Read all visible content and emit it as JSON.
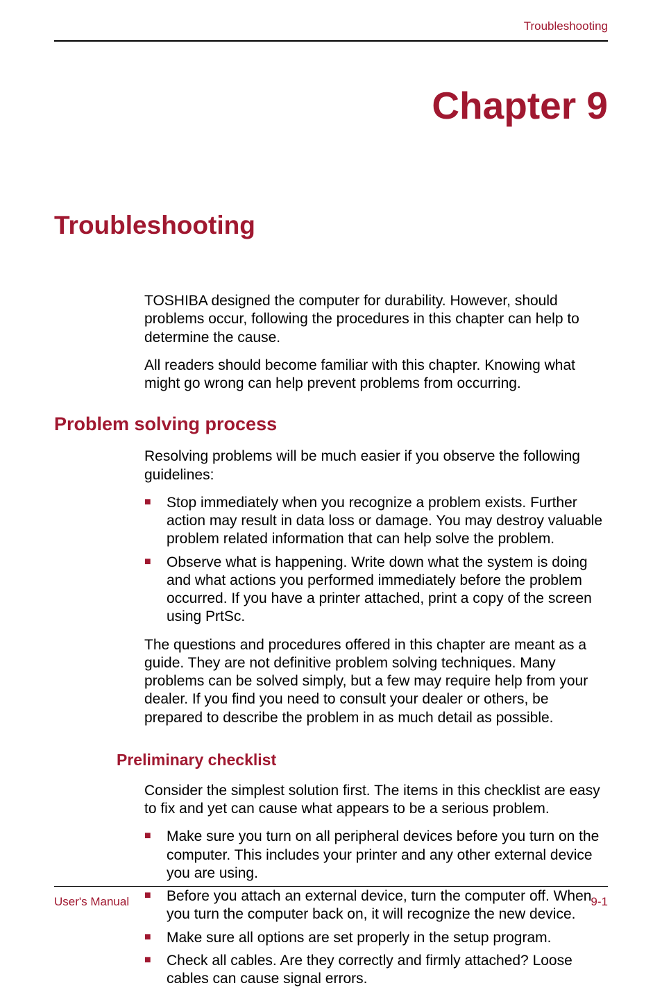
{
  "colors": {
    "accent": "#a01830",
    "text": "#000000",
    "background": "#ffffff",
    "rule": "#000000"
  },
  "typography": {
    "chapter_fontsize": 55,
    "section_fontsize": 37,
    "subsection_fontsize": 27,
    "sub2_fontsize": 23,
    "body_fontsize": 21,
    "header_footer_fontsize": 17
  },
  "header": {
    "right_text": "Troubleshooting"
  },
  "chapter": {
    "label": "Chapter 9"
  },
  "section": {
    "title": "Troubleshooting"
  },
  "intro": {
    "p1": "TOSHIBA designed the computer for durability. However, should problems occur, following the procedures in this chapter can help to determine the cause.",
    "p2": "All readers should become familiar with this chapter. Knowing what might go wrong can help prevent problems from occurring."
  },
  "subsection1": {
    "title": "Problem solving process",
    "p1": "Resolving problems will be much easier if you observe the following guidelines:",
    "bullets": [
      "Stop immediately when you recognize a problem exists. Further action may result in data loss or damage. You may destroy valuable problem related information that can help solve the problem.",
      "Observe what is happening. Write down what the system is doing and what actions you performed immediately before the problem occurred. If you have a printer attached, print a copy of the screen using PrtSc."
    ],
    "p2": "The questions and procedures offered in this chapter are meant as a guide. They are not definitive problem solving techniques. Many problems can be solved simply, but a few may require help from your dealer. If you find you need to consult your dealer or others, be prepared to describe the problem in as much detail as possible."
  },
  "sub2": {
    "title": "Preliminary checklist",
    "p1": "Consider the simplest solution first. The items in this checklist are easy to fix and yet can cause what appears to be a serious problem.",
    "bullets": [
      "Make sure you turn on all peripheral devices before you turn on the computer. This includes your printer and any other external device you are using.",
      "Before you attach an external device, turn the computer off. When you turn the computer back on, it will recognize the new device.",
      "Make sure all options are set properly in the setup program.",
      "Check all cables. Are they correctly and firmly attached? Loose cables can cause signal errors."
    ]
  },
  "footer": {
    "left": "User's Manual",
    "right": "9-1"
  }
}
